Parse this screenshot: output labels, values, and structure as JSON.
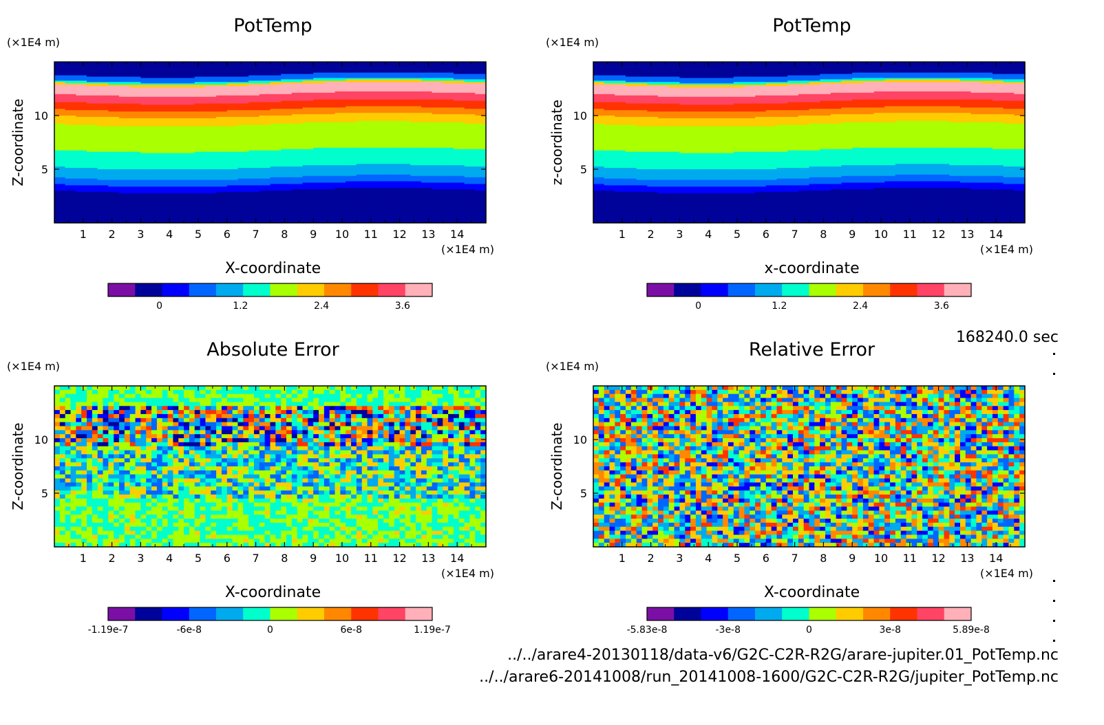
{
  "figure": {
    "time_label": "168240.0 sec",
    "file_lines": [
      "../../arare4-20130118/data-v6/G2C-C2R-R2G/arare-jupiter.01_PotTemp.nc",
      "../../arare6-20141008/run_20141008-1600/G2C-C2R-R2G/jupiter_PotTemp.nc"
    ]
  },
  "colors": {
    "levels": [
      "#7b0fa5",
      "#00039a",
      "#0000ff",
      "#0066ff",
      "#00aaee",
      "#00ffcc",
      "#aaff00",
      "#ffcc00",
      "#ff8800",
      "#ff3300",
      "#ff4466",
      "#ffb0b8"
    ]
  },
  "chart_data": [
    {
      "type": "heatmap",
      "title": "PotTemp",
      "xlabel": "X-coordinate",
      "ylabel": "Z-coordinate",
      "x_unit": "(×1E4 m)",
      "y_unit": "(×1E4 m)",
      "xlim": [
        0,
        15
      ],
      "ylim": [
        0,
        15
      ],
      "x_ticks": [
        1,
        2,
        3,
        4,
        5,
        6,
        7,
        8,
        9,
        10,
        11,
        12,
        13,
        14
      ],
      "y_ticks": [
        5,
        10
      ],
      "pattern": "layers",
      "colorbar_ticks": [
        "0",
        "1.2",
        "2.4",
        "3.6"
      ]
    },
    {
      "type": "heatmap",
      "title": "PotTemp",
      "xlabel": "x-coordinate",
      "ylabel": "z-coordinate",
      "x_unit": "(×1E4 m)",
      "y_unit": "(×1E4 m)",
      "xlim": [
        0,
        15
      ],
      "ylim": [
        0,
        15
      ],
      "x_ticks": [
        1,
        2,
        3,
        4,
        5,
        6,
        7,
        8,
        9,
        10,
        11,
        12,
        13,
        14
      ],
      "y_ticks": [
        5,
        10
      ],
      "pattern": "layers",
      "colorbar_ticks": [
        "0",
        "1.2",
        "2.4",
        "3.6"
      ]
    },
    {
      "type": "heatmap",
      "title": "Absolute Error",
      "xlabel": "X-coordinate",
      "ylabel": "Z-coordinate",
      "x_unit": "(×1E4 m)",
      "y_unit": "(×1E4 m)",
      "xlim": [
        0,
        15
      ],
      "ylim": [
        0,
        15
      ],
      "x_ticks": [
        1,
        2,
        3,
        4,
        5,
        6,
        7,
        8,
        9,
        10,
        11,
        12,
        13,
        14
      ],
      "y_ticks": [
        5,
        10
      ],
      "pattern": "noise-abs",
      "colorbar_ticks": [
        "-1.19e-7",
        "-6e-8",
        "0",
        "6e-8",
        "1.19e-7"
      ]
    },
    {
      "type": "heatmap",
      "title": "Relative Error",
      "xlabel": "X-coordinate",
      "ylabel": "Z-coordinate",
      "x_unit": "(×1E4 m)",
      "y_unit": "(×1E4 m)",
      "xlim": [
        0,
        15
      ],
      "ylim": [
        0,
        15
      ],
      "x_ticks": [
        1,
        2,
        3,
        4,
        5,
        6,
        7,
        8,
        9,
        10,
        11,
        12,
        13,
        14
      ],
      "y_ticks": [
        5,
        10
      ],
      "pattern": "noise-rel",
      "colorbar_ticks": [
        "-5.83e-8",
        "-3e-8",
        "0",
        "3e-8",
        "5.89e-8"
      ]
    }
  ]
}
